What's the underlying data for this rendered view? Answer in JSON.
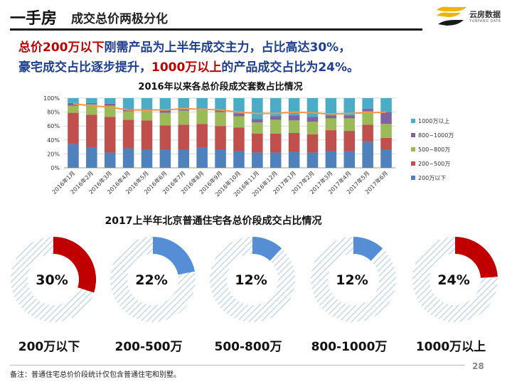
{
  "header": {
    "title": "一手房",
    "subtitle": "成交总价两极分化"
  },
  "logo": {
    "name": "云房数据",
    "sub": "YUNFANG DATA"
  },
  "headline": {
    "line1_a": "总价200万以下",
    "line1_b": "刚需产品为上半年成交主力，占比高达30%，",
    "line2_a": "豪宅成交占比逐步提升，",
    "line2_b": "1000万以上",
    "line2_c": "的产品成交占比为24%。"
  },
  "colors": {
    "s200below": "#4f81bd",
    "s200_500": "#c0504d",
    "s500_800": "#9bbb59",
    "s800_1000": "#8064a2",
    "s1000above": "#4bacc6",
    "trend": "#f79646",
    "donut_red": "#c00000",
    "donut_blue": "#558ed5",
    "hatch": "#bcd1e6"
  },
  "chart_data": [
    {
      "type": "bar",
      "stacked": true,
      "title": "2016年以来各总价段成交套数占比情况",
      "categories": [
        "2016年1月",
        "2016年2月",
        "2016年3月",
        "2016年4月",
        "2016年5月",
        "2016年6月",
        "2016年7月",
        "2016年8月",
        "2016年9月",
        "2016年10月",
        "2016年11月",
        "2016年12月",
        "2017年1月",
        "2017年2月",
        "2017年3月",
        "2017年4月",
        "2017年5月",
        "2017年6月"
      ],
      "yticks": [
        "0%",
        "20%",
        "40%",
        "60%",
        "80%",
        "100%"
      ],
      "ylim": [
        0,
        100
      ],
      "legend_position": "right",
      "series": [
        {
          "name": "200万以下",
          "color_key": "s200below",
          "values": [
            34,
            29,
            22,
            28,
            26,
            26,
            26,
            29,
            26,
            24,
            22,
            22,
            23,
            22,
            24,
            24,
            37,
            26
          ]
        },
        {
          "name": "200~500万",
          "color_key": "s200_500",
          "values": [
            45,
            47,
            51,
            41,
            42,
            35,
            36,
            34,
            34,
            34,
            27,
            27,
            27,
            26,
            30,
            29,
            25,
            17
          ]
        },
        {
          "name": "500~800万",
          "color_key": "s500_800",
          "values": [
            10,
            15,
            16,
            12,
            14,
            18,
            20,
            20,
            20,
            16,
            16,
            20,
            18,
            18,
            17,
            18,
            19,
            20
          ]
        },
        {
          "name": "800~1000万",
          "color_key": "s800_1000",
          "values": [
            4,
            2,
            3,
            4,
            3,
            5,
            4,
            2,
            4,
            4,
            5,
            5,
            7,
            7,
            4,
            4,
            4,
            17
          ]
        },
        {
          "name": "1000万以上",
          "color_key": "s1000above",
          "values": [
            7,
            7,
            8,
            15,
            15,
            16,
            14,
            15,
            16,
            22,
            30,
            26,
            25,
            27,
            25,
            25,
            15,
            20
          ]
        }
      ],
      "trend_series": {
        "color_key": "trend",
        "values": [
          92,
          89,
          87,
          83,
          83,
          83,
          85,
          84,
          83,
          80,
          78,
          78,
          80,
          79,
          77,
          78,
          79,
          80
        ]
      }
    },
    {
      "type": "pie",
      "title": "2017上半年北京普通住宅各总价段成交占比情况",
      "donuts": [
        {
          "label": "200万以下",
          "value": 30,
          "text": "30%",
          "color_key": "donut_red"
        },
        {
          "label": "200-500万",
          "value": 22,
          "text": "22%",
          "color_key": "donut_blue"
        },
        {
          "label": "500-800万",
          "value": 12,
          "text": "12%",
          "color_key": "donut_blue"
        },
        {
          "label": "800-1000万",
          "value": 12,
          "text": "12%",
          "color_key": "donut_blue"
        },
        {
          "label": "1000万以上",
          "value": 24,
          "text": "24%",
          "color_key": "donut_red"
        }
      ]
    }
  ],
  "footnote": "备注：普通住宅总价价段统计仅包含普通住宅和别墅。",
  "page_number": "28"
}
